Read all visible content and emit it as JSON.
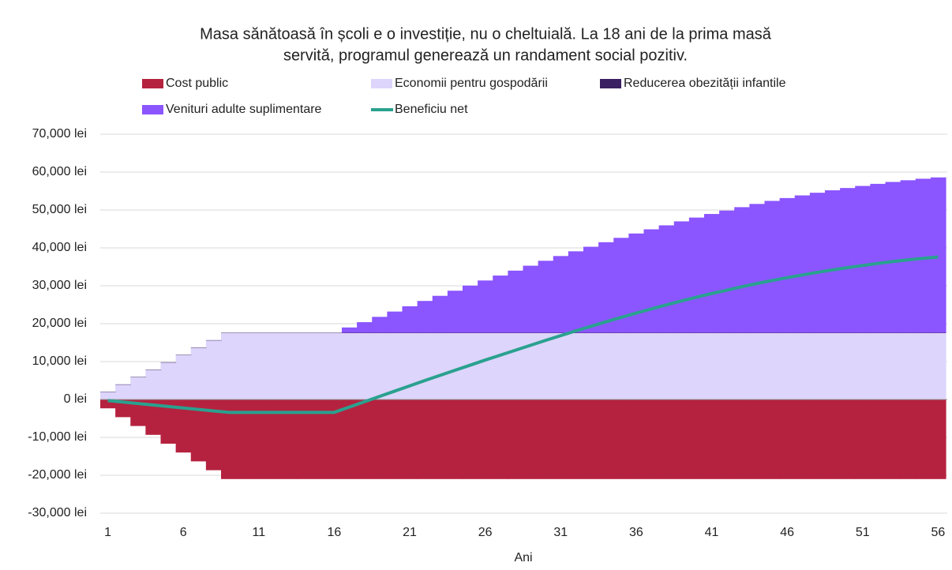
{
  "chart_data": {
    "type": "stacked-step-area",
    "title": [
      "Masa sănătoasă în școli e o investiție, nu o cheltuială. La 18 ani de la prima masă",
      "servită, programul generează un randament social pozitiv."
    ],
    "x_label": "Ani",
    "categories": [
      1,
      2,
      3,
      4,
      5,
      6,
      7,
      8,
      9,
      10,
      11,
      12,
      13,
      14,
      15,
      16,
      17,
      18,
      19,
      20,
      21,
      22,
      23,
      24,
      25,
      26,
      27,
      28,
      29,
      30,
      31,
      32,
      33,
      34,
      35,
      36,
      37,
      38,
      39,
      40,
      41,
      42,
      43,
      44,
      45,
      46,
      47,
      48,
      49,
      50,
      51,
      52,
      53,
      54,
      55,
      56
    ],
    "xticks": [
      1,
      6,
      11,
      16,
      21,
      26,
      31,
      36,
      41,
      46,
      51,
      56
    ],
    "ylim": [
      -30000,
      70000
    ],
    "yticks": [
      {
        "value": -30000,
        "label": "-30,000 lei"
      },
      {
        "value": -20000,
        "label": "-20,000 lei"
      },
      {
        "value": -10000,
        "label": "-10,000 lei"
      },
      {
        "value": 0,
        "label": "0 lei"
      },
      {
        "value": 10000,
        "label": "10,000 lei"
      },
      {
        "value": 20000,
        "label": "20,000 lei"
      },
      {
        "value": 30000,
        "label": "30,000 lei"
      },
      {
        "value": 40000,
        "label": "40,000 lei"
      },
      {
        "value": 50000,
        "label": "50,000 lei"
      },
      {
        "value": 60000,
        "label": "60,000 lei"
      },
      {
        "value": 70000,
        "label": "70,000 lei"
      }
    ],
    "grid": true,
    "legend": "top",
    "series": [
      {
        "name": "Cost public",
        "color": "#b5223f",
        "kind": "area",
        "values": [
          -2333,
          -4667,
          -7000,
          -9333,
          -11667,
          -14000,
          -16333,
          -18667,
          -21000,
          -21000,
          -21000,
          -21000,
          -21000,
          -21000,
          -21000,
          -21000,
          -21000,
          -21000,
          -21000,
          -21000,
          -21000,
          -21000,
          -21000,
          -21000,
          -21000,
          -21000,
          -21000,
          -21000,
          -21000,
          -21000,
          -21000,
          -21000,
          -21000,
          -21000,
          -21000,
          -21000,
          -21000,
          -21000,
          -21000,
          -21000,
          -21000,
          -21000,
          -21000,
          -21000,
          -21000,
          -21000,
          -21000,
          -21000,
          -21000,
          -21000,
          -21000,
          -21000,
          -21000,
          -21000,
          -21000,
          -21000
        ]
      },
      {
        "name": "Economii pentru gospodării",
        "color": "#ddd5fb",
        "kind": "area",
        "values": [
          1944,
          3889,
          5833,
          7778,
          9722,
          11667,
          13611,
          15556,
          17500,
          17500,
          17500,
          17500,
          17500,
          17500,
          17500,
          17500,
          17500,
          17500,
          17500,
          17500,
          17500,
          17500,
          17500,
          17500,
          17500,
          17500,
          17500,
          17500,
          17500,
          17500,
          17500,
          17500,
          17500,
          17500,
          17500,
          17500,
          17500,
          17500,
          17500,
          17500,
          17500,
          17500,
          17500,
          17500,
          17500,
          17500,
          17500,
          17500,
          17500,
          17500,
          17500,
          17500,
          17500,
          17500,
          17500,
          17500
        ]
      },
      {
        "name": "Reducerea obezității infantile",
        "color": "#3b1f63",
        "kind": "area",
        "values": [
          100,
          100,
          100,
          100,
          100,
          100,
          100,
          100,
          100,
          100,
          100,
          100,
          100,
          100,
          100,
          100,
          100,
          100,
          100,
          100,
          100,
          100,
          100,
          100,
          100,
          100,
          100,
          100,
          100,
          100,
          100,
          100,
          100,
          100,
          100,
          100,
          100,
          100,
          100,
          100,
          100,
          100,
          100,
          100,
          100,
          100,
          100,
          100,
          100,
          100,
          100,
          100,
          100,
          100,
          100,
          100
        ]
      },
      {
        "name": "Venituri adulte suplimentare",
        "color": "#8b55ff",
        "kind": "area",
        "values": [
          0,
          0,
          0,
          0,
          0,
          0,
          0,
          0,
          0,
          0,
          0,
          0,
          0,
          0,
          0,
          0,
          1400,
          2800,
          4200,
          5600,
          7000,
          8400,
          9750,
          11100,
          12450,
          13800,
          15100,
          16400,
          17700,
          19000,
          20250,
          21500,
          22700,
          23900,
          25050,
          26200,
          27300,
          28350,
          29400,
          30400,
          31350,
          32250,
          33150,
          34000,
          34800,
          35550,
          36250,
          36950,
          37600,
          38200,
          38750,
          39300,
          39800,
          40250,
          40650,
          41000
        ]
      },
      {
        "name": "Beneficiu net",
        "color": "#2aa18f",
        "kind": "line",
        "values": [
          -289,
          -678,
          -1067,
          -1455,
          -1845,
          -2233,
          -2622,
          -3011,
          -3400,
          -3400,
          -3400,
          -3400,
          -3400,
          -3400,
          -3400,
          -3400,
          -2000,
          -600,
          800,
          2200,
          3600,
          5000,
          6350,
          7700,
          9050,
          10400,
          11700,
          13000,
          14300,
          15600,
          16850,
          18100,
          19300,
          20500,
          21650,
          22800,
          23900,
          24950,
          26000,
          27000,
          27950,
          28850,
          29750,
          30600,
          31400,
          32150,
          32850,
          33550,
          34200,
          34800,
          35350,
          35900,
          36400,
          36850,
          37250,
          37600
        ]
      }
    ]
  }
}
